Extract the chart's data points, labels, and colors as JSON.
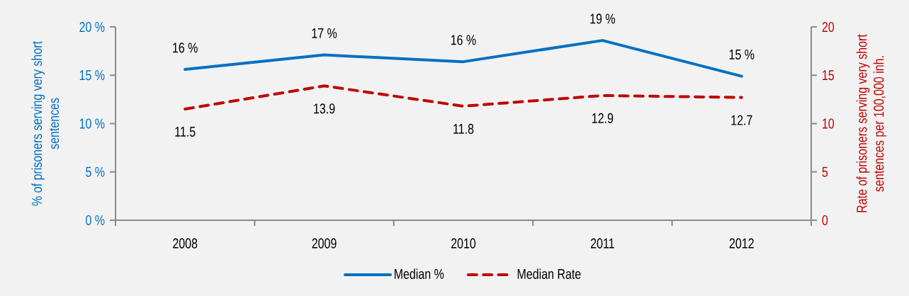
{
  "chart_data": {
    "type": "line",
    "categories": [
      "2008",
      "2009",
      "2010",
      "2011",
      "2012"
    ],
    "ylabel": "% of prisoners serving very short sentences",
    "y2label": "Rate of prisoners serving very short sentences per 100,000 inh.",
    "ylim": [
      0,
      20
    ],
    "yticks": [
      {
        "value": 0,
        "label": "0 %"
      },
      {
        "value": 5,
        "label": "5 %"
      },
      {
        "value": 10,
        "label": "10 %"
      },
      {
        "value": 15,
        "label": "15 %"
      },
      {
        "value": 20,
        "label": "20 %"
      }
    ],
    "y2lim": [
      0,
      20
    ],
    "y2ticks": [
      0,
      5,
      10,
      15,
      20
    ],
    "legend": "bottom",
    "series": [
      {
        "name": "Median %",
        "color": "#0070c0",
        "line_style": "solid",
        "values": [
          15.6,
          17.1,
          16.4,
          18.6,
          14.9
        ],
        "value_labels": [
          "16 %",
          "17 %",
          "16 %",
          "19 %",
          "15 %"
        ]
      },
      {
        "name": "Median Rate",
        "color": "#c00000",
        "axis": "y2",
        "line_style": "dashed",
        "values": [
          11.5,
          13.9,
          11.8,
          12.9,
          12.7
        ],
        "value_labels": [
          "11.5",
          "13.9",
          "11.8",
          "12.9",
          "12.7"
        ]
      }
    ]
  }
}
